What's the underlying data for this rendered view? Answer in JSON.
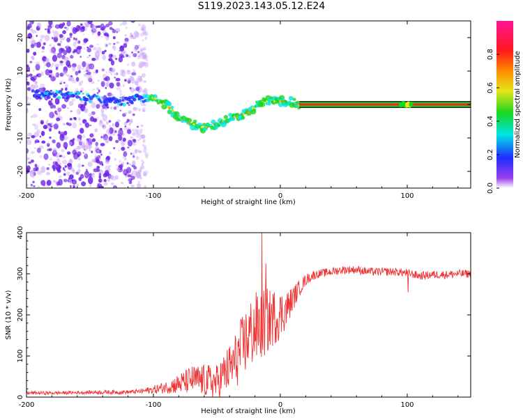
{
  "title": "S119.2023.143.05.12.E24",
  "colors": {
    "snr_line": "#ee3333",
    "tone_line": "#111111",
    "colormap": [
      "#ffffff",
      "#9a3ff0",
      "#1e2bff",
      "#00e5e5",
      "#19d61e",
      "#e6e61a",
      "#ff8c00",
      "#ff1a1a",
      "#ff1493"
    ]
  },
  "chart_data": [
    {
      "type": "heatmap",
      "xlabel": "Height of straight line (km)",
      "ylabel": "Frequency (Hz)",
      "xlim": [
        -200,
        150
      ],
      "ylim": [
        -25,
        25
      ],
      "xticks": [
        -200,
        -100,
        0,
        100
      ],
      "yticks": [
        -20,
        -10,
        0,
        10,
        20
      ],
      "colorbar": {
        "label": "Normalized spectral amplitude",
        "range": [
          0,
          1
        ],
        "ticks": [
          "0.0",
          "0.2",
          "0.4",
          "0.6",
          "0.8"
        ]
      },
      "ridge": {
        "x": [
          -195,
          -180,
          -165,
          -150,
          -135,
          -120,
          -110,
          -100,
          -90,
          -82,
          -75,
          -68,
          -60,
          -52,
          -45,
          -38,
          -30,
          -24,
          -18,
          -12,
          -6,
          0,
          8,
          15
        ],
        "y": [
          3,
          3,
          3,
          2,
          1,
          1,
          2,
          2,
          0,
          -3,
          -5,
          -6,
          -7,
          -6,
          -5,
          -4,
          -3,
          -2,
          0,
          1,
          1,
          1,
          1,
          0
        ]
      },
      "tone": {
        "x_start": 15,
        "x_end": 150,
        "frequency": 0,
        "amplitude": 1.0
      },
      "tone_bright_segments": [
        [
          95,
          103
        ]
      ],
      "noise_region": {
        "x_start": -200,
        "x_end": -105
      }
    },
    {
      "type": "line",
      "xlabel": "Height of straight line (km)",
      "ylabel": "SNR (10 * v/v)",
      "xlim": [
        -200,
        150
      ],
      "ylim": [
        0,
        400
      ],
      "xticks": [
        -200,
        -100,
        0,
        100
      ],
      "yticks": [
        0,
        100,
        200,
        300,
        400
      ],
      "series": [
        {
          "x": [
            -200,
            -180,
            -160,
            -140,
            -120,
            -110,
            -100,
            -90,
            -80,
            -70,
            -60,
            -50,
            -45,
            -40,
            -35,
            -30,
            -25,
            -20,
            -15,
            -10,
            -5,
            0,
            5,
            10,
            15,
            20,
            25,
            30,
            40,
            50,
            60,
            70,
            80,
            90,
            100,
            110,
            120,
            130,
            140,
            150
          ],
          "y": [
            10,
            10,
            11,
            12,
            12,
            14,
            18,
            24,
            32,
            42,
            40,
            35,
            55,
            70,
            90,
            120,
            150,
            165,
            175,
            185,
            195,
            200,
            215,
            240,
            265,
            285,
            295,
            300,
            305,
            310,
            310,
            305,
            305,
            305,
            302,
            295,
            298,
            298,
            300,
            300
          ],
          "noise_amplitude": [
            4,
            4,
            4,
            5,
            5,
            6,
            10,
            15,
            25,
            35,
            40,
            45,
            50,
            60,
            70,
            80,
            85,
            90,
            90,
            80,
            70,
            60,
            45,
            30,
            20,
            14,
            12,
            10,
            10,
            10,
            10,
            10,
            10,
            10,
            10,
            10,
            10,
            10,
            10,
            10
          ]
        }
      ],
      "spikes": [
        {
          "x": -14.5,
          "y": 400
        },
        {
          "x": -11.5,
          "y": 325
        },
        {
          "x": 100.5,
          "y": 255
        }
      ]
    }
  ]
}
